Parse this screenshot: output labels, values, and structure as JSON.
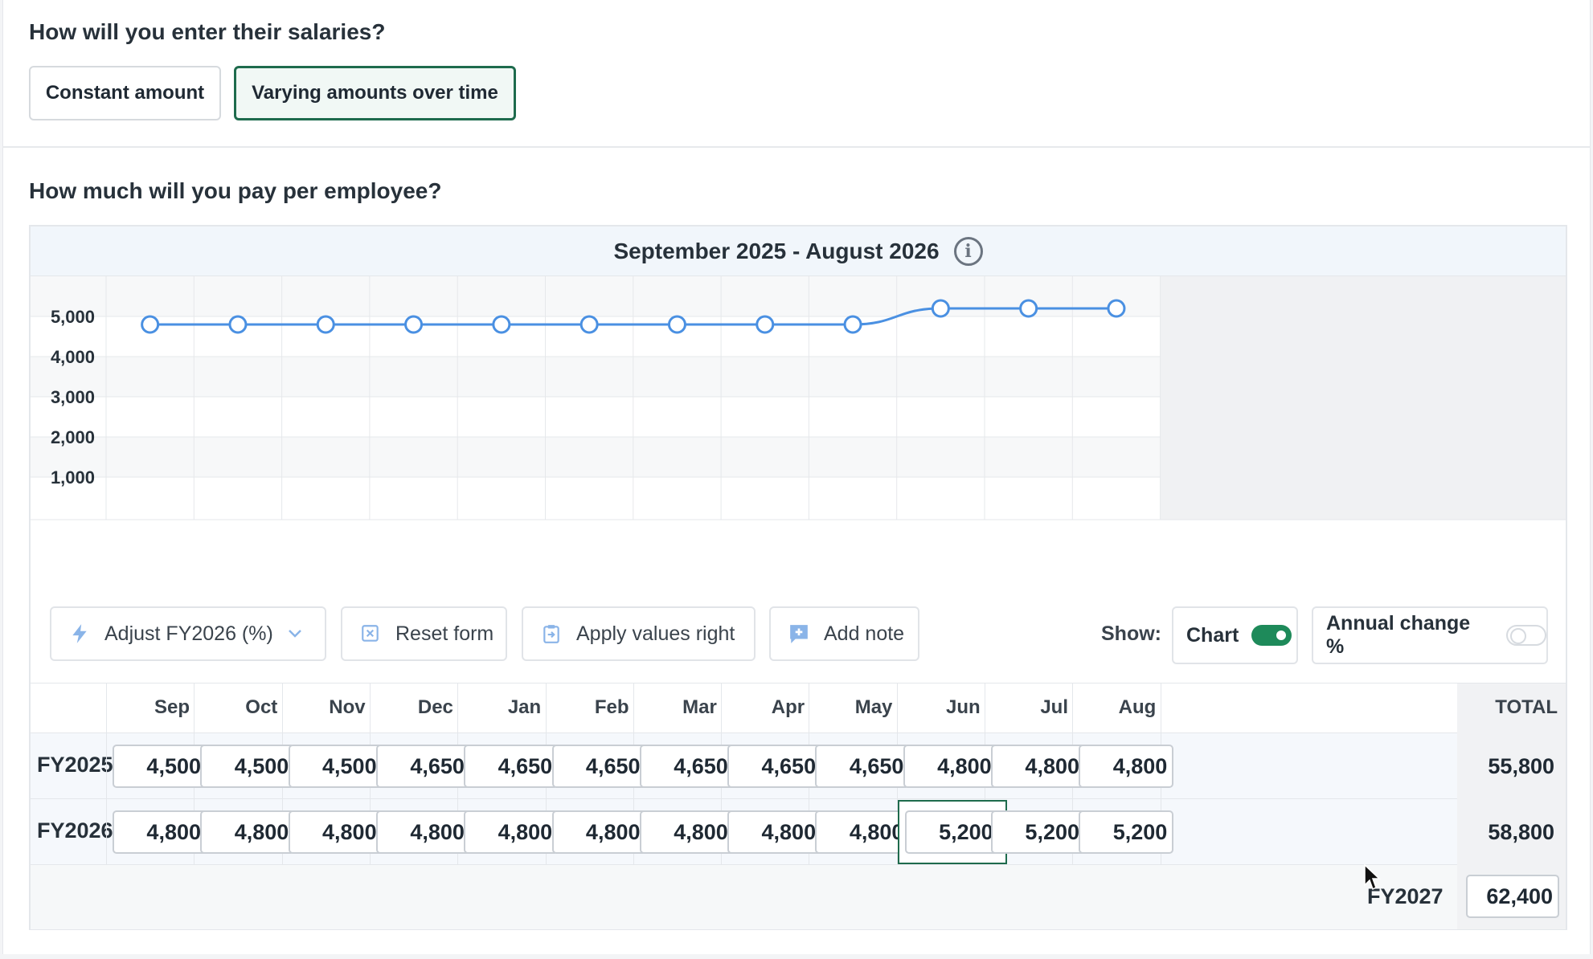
{
  "salary_entry": {
    "question": "How will you enter their salaries?",
    "options": [
      {
        "label": "Constant amount",
        "selected": false
      },
      {
        "label": "Varying amounts over time",
        "selected": true
      }
    ]
  },
  "pay": {
    "question": "How much will you pay per employee?",
    "period_title": "September 2025 - August 2026",
    "info_icon": "info-icon"
  },
  "chart_data": {
    "type": "line",
    "title": "September 2025 - August 2026",
    "categories": [
      "Sep",
      "Oct",
      "Nov",
      "Dec",
      "Jan",
      "Feb",
      "Mar",
      "Apr",
      "May",
      "Jun",
      "Jul",
      "Aug"
    ],
    "series": [
      {
        "values": [
          4800,
          4800,
          4800,
          4800,
          4800,
          4800,
          4800,
          4800,
          4800,
          5200,
          5200,
          5200
        ]
      }
    ],
    "yticks": [
      "5,000",
      "4,000",
      "3,000",
      "2,000",
      "1,000"
    ],
    "ytick_values": [
      5000,
      4000,
      3000,
      2000,
      1000
    ],
    "ylim": [
      0,
      6000
    ],
    "grid": true,
    "line_color": "#4a90e2"
  },
  "toolbar": {
    "adjust_label": "Adjust FY2026 (%)",
    "reset_label": "Reset form",
    "apply_label": "Apply values right",
    "note_label": "Add note",
    "show_label": "Show:",
    "chart_toggle_label": "Chart",
    "chart_toggle_on": true,
    "annual_change_label": "Annual change %",
    "annual_change_on": false
  },
  "table": {
    "months": [
      "Sep",
      "Oct",
      "Nov",
      "Dec",
      "Jan",
      "Feb",
      "Mar",
      "Apr",
      "May",
      "Jun",
      "Jul",
      "Aug"
    ],
    "total_header": "TOTAL",
    "rows": [
      {
        "label": "FY2025",
        "values": [
          "4,500",
          "4,500",
          "4,500",
          "4,650",
          "4,650",
          "4,650",
          "4,650",
          "4,650",
          "4,650",
          "4,800",
          "4,800",
          "4,800"
        ],
        "total": "55,800"
      },
      {
        "label": "FY2026",
        "values": [
          "4,800",
          "4,800",
          "4,800",
          "4,800",
          "4,800",
          "4,800",
          "4,800",
          "4,800",
          "4,800",
          "5,200",
          "5,200",
          "5,200"
        ],
        "total": "58,800"
      }
    ],
    "fy2027_label": "FY2027",
    "fy2027_value": "62,400"
  },
  "colors": {
    "accent_green": "#1e6b4d",
    "toggle_green": "#1e8a5a",
    "chart_blue": "#4a90e2"
  }
}
